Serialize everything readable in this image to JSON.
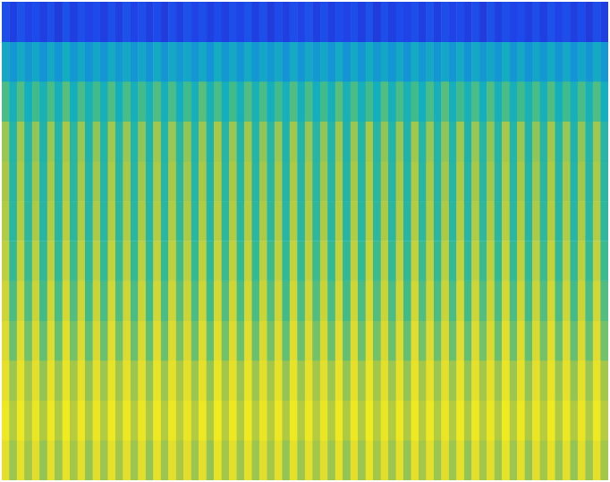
{
  "chart_data": {
    "type": "heatmap",
    "color": "parula",
    "tick_labels": false,
    "zlim": [
      0,
      1
    ],
    "z": [
      [
        0.14,
        0.1,
        0.15,
        0.11,
        0.13,
        0.1,
        0.14,
        0.09,
        0.15,
        0.1,
        0.14,
        0.11,
        0.13,
        0.1,
        0.14,
        0.1,
        0.15,
        0.11,
        0.14,
        0.1,
        0.13,
        0.09,
        0.14,
        0.1,
        0.15,
        0.11,
        0.14,
        0.1,
        0.13,
        0.1,
        0.14,
        0.11,
        0.15,
        0.1,
        0.14,
        0.09,
        0.13,
        0.1,
        0.14,
        0.11,
        0.15,
        0.1,
        0.14,
        0.1,
        0.13,
        0.11,
        0.14,
        0.1,
        0.15,
        0.09,
        0.14,
        0.1,
        0.13,
        0.11,
        0.14,
        0.1,
        0.15,
        0.1,
        0.14,
        0.11,
        0.13,
        0.1,
        0.14,
        0.09,
        0.15,
        0.1,
        0.14,
        0.11,
        0.13,
        0.1,
        0.14,
        0.1,
        0.15,
        0.11,
        0.14,
        0.1,
        0.13,
        0.09,
        0.14,
        0.1
      ],
      [
        0.42,
        0.34,
        0.43,
        0.35,
        0.41,
        0.33,
        0.42,
        0.34,
        0.44,
        0.35,
        0.42,
        0.33,
        0.41,
        0.34,
        0.43,
        0.35,
        0.42,
        0.34,
        0.41,
        0.33,
        0.43,
        0.34,
        0.42,
        0.36,
        0.41,
        0.34,
        0.42,
        0.33,
        0.44,
        0.35,
        0.42,
        0.34,
        0.43,
        0.34,
        0.41,
        0.35,
        0.42,
        0.33,
        0.43,
        0.34,
        0.42,
        0.35,
        0.41,
        0.34,
        0.43,
        0.33,
        0.42,
        0.34,
        0.44,
        0.35,
        0.41,
        0.34,
        0.42,
        0.33,
        0.43,
        0.35,
        0.42,
        0.34,
        0.41,
        0.34,
        0.43,
        0.33,
        0.42,
        0.35,
        0.41,
        0.34,
        0.44,
        0.34,
        0.42,
        0.33,
        0.41,
        0.35,
        0.43,
        0.34,
        0.42,
        0.33,
        0.41,
        0.34,
        0.43,
        0.35
      ],
      [
        0.58,
        0.46,
        0.59,
        0.45,
        0.57,
        0.47,
        0.58,
        0.46,
        0.6,
        0.45,
        0.58,
        0.47,
        0.57,
        0.46,
        0.59,
        0.45,
        0.58,
        0.46,
        0.57,
        0.47,
        0.59,
        0.46,
        0.58,
        0.44,
        0.57,
        0.46,
        0.6,
        0.47,
        0.58,
        0.45,
        0.57,
        0.46,
        0.59,
        0.47,
        0.58,
        0.45,
        0.57,
        0.46,
        0.59,
        0.46,
        0.58,
        0.45,
        0.57,
        0.46,
        0.6,
        0.47,
        0.58,
        0.46,
        0.57,
        0.45,
        0.59,
        0.46,
        0.58,
        0.47,
        0.57,
        0.45,
        0.58,
        0.46,
        0.6,
        0.46,
        0.57,
        0.47,
        0.58,
        0.45,
        0.59,
        0.46,
        0.58,
        0.46,
        0.57,
        0.47,
        0.58,
        0.46,
        0.59,
        0.45,
        0.57,
        0.46,
        0.58,
        0.47,
        0.59,
        0.45
      ],
      [
        0.68,
        0.5,
        0.69,
        0.51,
        0.67,
        0.49,
        0.68,
        0.5,
        0.7,
        0.52,
        0.68,
        0.49,
        0.67,
        0.5,
        0.69,
        0.51,
        0.68,
        0.5,
        0.67,
        0.49,
        0.69,
        0.5,
        0.68,
        0.52,
        0.67,
        0.5,
        0.68,
        0.49,
        0.7,
        0.51,
        0.68,
        0.5,
        0.69,
        0.5,
        0.67,
        0.51,
        0.68,
        0.49,
        0.69,
        0.5,
        0.68,
        0.51,
        0.67,
        0.5,
        0.69,
        0.49,
        0.68,
        0.5,
        0.7,
        0.51,
        0.67,
        0.5,
        0.68,
        0.49,
        0.69,
        0.51,
        0.68,
        0.5,
        0.67,
        0.5,
        0.69,
        0.49,
        0.68,
        0.51,
        0.67,
        0.5,
        0.7,
        0.5,
        0.68,
        0.49,
        0.67,
        0.51,
        0.69,
        0.5,
        0.68,
        0.49,
        0.67,
        0.5,
        0.69,
        0.51
      ],
      [
        0.7,
        0.51,
        0.71,
        0.52,
        0.69,
        0.5,
        0.7,
        0.51,
        0.72,
        0.52,
        0.7,
        0.5,
        0.69,
        0.51,
        0.71,
        0.52,
        0.7,
        0.51,
        0.69,
        0.5,
        0.71,
        0.51,
        0.7,
        0.53,
        0.69,
        0.51,
        0.7,
        0.5,
        0.72,
        0.52,
        0.7,
        0.51,
        0.71,
        0.51,
        0.69,
        0.52,
        0.7,
        0.5,
        0.71,
        0.51,
        0.7,
        0.52,
        0.69,
        0.51,
        0.71,
        0.5,
        0.7,
        0.51,
        0.72,
        0.52,
        0.69,
        0.51,
        0.7,
        0.5,
        0.71,
        0.52,
        0.7,
        0.51,
        0.69,
        0.51,
        0.71,
        0.5,
        0.7,
        0.52,
        0.69,
        0.51,
        0.72,
        0.51,
        0.7,
        0.5,
        0.69,
        0.52,
        0.71,
        0.51,
        0.7,
        0.5,
        0.69,
        0.51,
        0.71,
        0.52
      ],
      [
        0.72,
        0.52,
        0.73,
        0.53,
        0.71,
        0.51,
        0.72,
        0.52,
        0.74,
        0.53,
        0.72,
        0.51,
        0.71,
        0.52,
        0.73,
        0.53,
        0.72,
        0.52,
        0.71,
        0.51,
        0.73,
        0.52,
        0.72,
        0.54,
        0.71,
        0.52,
        0.72,
        0.51,
        0.74,
        0.53,
        0.72,
        0.52,
        0.73,
        0.52,
        0.71,
        0.53,
        0.72,
        0.51,
        0.73,
        0.52,
        0.72,
        0.53,
        0.71,
        0.52,
        0.73,
        0.51,
        0.72,
        0.52,
        0.74,
        0.53,
        0.71,
        0.52,
        0.72,
        0.51,
        0.73,
        0.53,
        0.72,
        0.52,
        0.71,
        0.52,
        0.73,
        0.51,
        0.72,
        0.53,
        0.71,
        0.52,
        0.74,
        0.52,
        0.72,
        0.51,
        0.71,
        0.53,
        0.73,
        0.52,
        0.72,
        0.51,
        0.71,
        0.52,
        0.73,
        0.53
      ],
      [
        0.76,
        0.55,
        0.77,
        0.56,
        0.75,
        0.54,
        0.76,
        0.55,
        0.78,
        0.56,
        0.76,
        0.54,
        0.75,
        0.55,
        0.77,
        0.56,
        0.76,
        0.55,
        0.75,
        0.54,
        0.77,
        0.55,
        0.76,
        0.57,
        0.75,
        0.55,
        0.76,
        0.54,
        0.78,
        0.56,
        0.76,
        0.55,
        0.77,
        0.55,
        0.75,
        0.56,
        0.76,
        0.54,
        0.77,
        0.55,
        0.76,
        0.56,
        0.75,
        0.55,
        0.77,
        0.54,
        0.76,
        0.55,
        0.78,
        0.56,
        0.75,
        0.55,
        0.76,
        0.54,
        0.77,
        0.56,
        0.76,
        0.55,
        0.75,
        0.55,
        0.77,
        0.54,
        0.76,
        0.56,
        0.75,
        0.55,
        0.78,
        0.55,
        0.76,
        0.54,
        0.75,
        0.56,
        0.77,
        0.55,
        0.76,
        0.54,
        0.75,
        0.55,
        0.77,
        0.56
      ],
      [
        0.8,
        0.58,
        0.81,
        0.59,
        0.79,
        0.57,
        0.8,
        0.58,
        0.82,
        0.59,
        0.8,
        0.57,
        0.79,
        0.58,
        0.81,
        0.59,
        0.8,
        0.58,
        0.79,
        0.57,
        0.81,
        0.58,
        0.8,
        0.6,
        0.79,
        0.58,
        0.8,
        0.57,
        0.82,
        0.59,
        0.8,
        0.58,
        0.81,
        0.58,
        0.79,
        0.59,
        0.8,
        0.57,
        0.81,
        0.58,
        0.8,
        0.59,
        0.79,
        0.58,
        0.81,
        0.57,
        0.8,
        0.58,
        0.82,
        0.59,
        0.79,
        0.58,
        0.8,
        0.57,
        0.81,
        0.59,
        0.8,
        0.58,
        0.79,
        0.58,
        0.81,
        0.57,
        0.8,
        0.59,
        0.79,
        0.58,
        0.82,
        0.58,
        0.8,
        0.57,
        0.79,
        0.59,
        0.81,
        0.58,
        0.8,
        0.57,
        0.79,
        0.58,
        0.81,
        0.59
      ],
      [
        0.84,
        0.62,
        0.85,
        0.63,
        0.83,
        0.61,
        0.84,
        0.62,
        0.86,
        0.63,
        0.84,
        0.61,
        0.83,
        0.62,
        0.85,
        0.63,
        0.84,
        0.62,
        0.83,
        0.61,
        0.85,
        0.62,
        0.84,
        0.64,
        0.83,
        0.62,
        0.84,
        0.61,
        0.86,
        0.63,
        0.84,
        0.62,
        0.85,
        0.62,
        0.83,
        0.63,
        0.84,
        0.61,
        0.85,
        0.62,
        0.84,
        0.63,
        0.83,
        0.62,
        0.85,
        0.61,
        0.84,
        0.62,
        0.86,
        0.63,
        0.83,
        0.62,
        0.84,
        0.61,
        0.85,
        0.63,
        0.84,
        0.62,
        0.83,
        0.62,
        0.85,
        0.61,
        0.84,
        0.63,
        0.83,
        0.62,
        0.86,
        0.62,
        0.84,
        0.61,
        0.83,
        0.63,
        0.85,
        0.62,
        0.84,
        0.61,
        0.83,
        0.62,
        0.85,
        0.63
      ],
      [
        0.88,
        0.68,
        0.89,
        0.69,
        0.87,
        0.67,
        0.88,
        0.68,
        0.9,
        0.69,
        0.88,
        0.67,
        0.87,
        0.68,
        0.89,
        0.69,
        0.88,
        0.68,
        0.87,
        0.67,
        0.89,
        0.68,
        0.88,
        0.7,
        0.87,
        0.68,
        0.88,
        0.67,
        0.9,
        0.69,
        0.88,
        0.68,
        0.89,
        0.68,
        0.87,
        0.69,
        0.88,
        0.67,
        0.89,
        0.68,
        0.88,
        0.69,
        0.87,
        0.68,
        0.89,
        0.67,
        0.88,
        0.68,
        0.9,
        0.69,
        0.87,
        0.68,
        0.88,
        0.67,
        0.89,
        0.69,
        0.88,
        0.68,
        0.87,
        0.68,
        0.89,
        0.67,
        0.88,
        0.69,
        0.87,
        0.68,
        0.9,
        0.68,
        0.88,
        0.67,
        0.87,
        0.69,
        0.89,
        0.68,
        0.88,
        0.67,
        0.87,
        0.68,
        0.89,
        0.69
      ],
      [
        0.92,
        0.72,
        0.93,
        0.73,
        0.91,
        0.71,
        0.92,
        0.72,
        0.94,
        0.73,
        0.92,
        0.71,
        0.91,
        0.72,
        0.93,
        0.73,
        0.92,
        0.72,
        0.91,
        0.71,
        0.93,
        0.72,
        0.92,
        0.74,
        0.91,
        0.72,
        0.92,
        0.71,
        0.94,
        0.73,
        0.92,
        0.72,
        0.93,
        0.72,
        0.91,
        0.73,
        0.92,
        0.71,
        0.93,
        0.72,
        0.92,
        0.73,
        0.91,
        0.72,
        0.93,
        0.71,
        0.92,
        0.72,
        0.94,
        0.73,
        0.91,
        0.72,
        0.92,
        0.71,
        0.93,
        0.73,
        0.92,
        0.72,
        0.91,
        0.72,
        0.93,
        0.71,
        0.92,
        0.73,
        0.91,
        0.72,
        0.94,
        0.72,
        0.92,
        0.71,
        0.91,
        0.73,
        0.93,
        0.72,
        0.92,
        0.71,
        0.91,
        0.72,
        0.93,
        0.73
      ],
      [
        0.87,
        0.68,
        0.88,
        0.69,
        0.86,
        0.67,
        0.87,
        0.68,
        0.89,
        0.69,
        0.87,
        0.67,
        0.86,
        0.68,
        0.88,
        0.69,
        0.87,
        0.68,
        0.86,
        0.67,
        0.88,
        0.68,
        0.87,
        0.7,
        0.86,
        0.68,
        0.87,
        0.67,
        0.89,
        0.69,
        0.87,
        0.68,
        0.88,
        0.68,
        0.86,
        0.69,
        0.87,
        0.67,
        0.88,
        0.68,
        0.87,
        0.69,
        0.86,
        0.68,
        0.88,
        0.67,
        0.87,
        0.68,
        0.89,
        0.69,
        0.86,
        0.68,
        0.87,
        0.67,
        0.88,
        0.69,
        0.87,
        0.68,
        0.86,
        0.68,
        0.88,
        0.67,
        0.87,
        0.69,
        0.86,
        0.68,
        0.89,
        0.68,
        0.87,
        0.67,
        0.86,
        0.69,
        0.88,
        0.68,
        0.87,
        0.67,
        0.86,
        0.68,
        0.88,
        0.69
      ]
    ]
  }
}
